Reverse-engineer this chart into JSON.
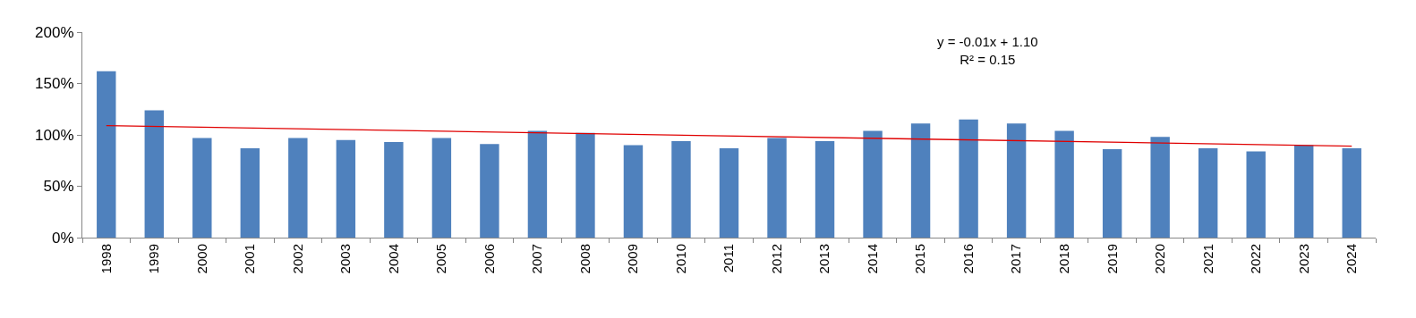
{
  "chart_data": {
    "type": "bar",
    "categories": [
      "1998",
      "1999",
      "2000",
      "2001",
      "2002",
      "2003",
      "2004",
      "2005",
      "2006",
      "2007",
      "2008",
      "2009",
      "2010",
      "2011",
      "2012",
      "2013",
      "2014",
      "2015",
      "2016",
      "2017",
      "2018",
      "2019",
      "2020",
      "2021",
      "2022",
      "2023",
      "2024"
    ],
    "series": [
      {
        "color": "#4f81bd",
        "values": [
          162,
          124,
          97,
          87,
          97,
          95,
          93,
          97,
          91,
          104,
          102,
          90,
          94,
          87,
          97,
          94,
          104,
          111,
          115,
          111,
          104,
          86,
          98,
          87,
          84,
          90,
          87
        ]
      },
      {
        "type": "line",
        "color": "#e00000",
        "values": [
          109,
          null,
          null,
          null,
          null,
          null,
          null,
          null,
          null,
          null,
          null,
          null,
          null,
          null,
          null,
          null,
          null,
          null,
          null,
          null,
          null,
          null,
          null,
          null,
          null,
          null,
          89
        ]
      }
    ],
    "ylim": [
      0,
      200
    ],
    "yticks": [
      {
        "value": 0,
        "label": "0%"
      },
      {
        "value": 50,
        "label": "50%"
      },
      {
        "value": 100,
        "label": "100%"
      },
      {
        "value": 150,
        "label": "150%"
      },
      {
        "value": 200,
        "label": "200%"
      }
    ],
    "annotations": [
      "y = -0.01x + 1.10\nR² = 0.15"
    ]
  }
}
